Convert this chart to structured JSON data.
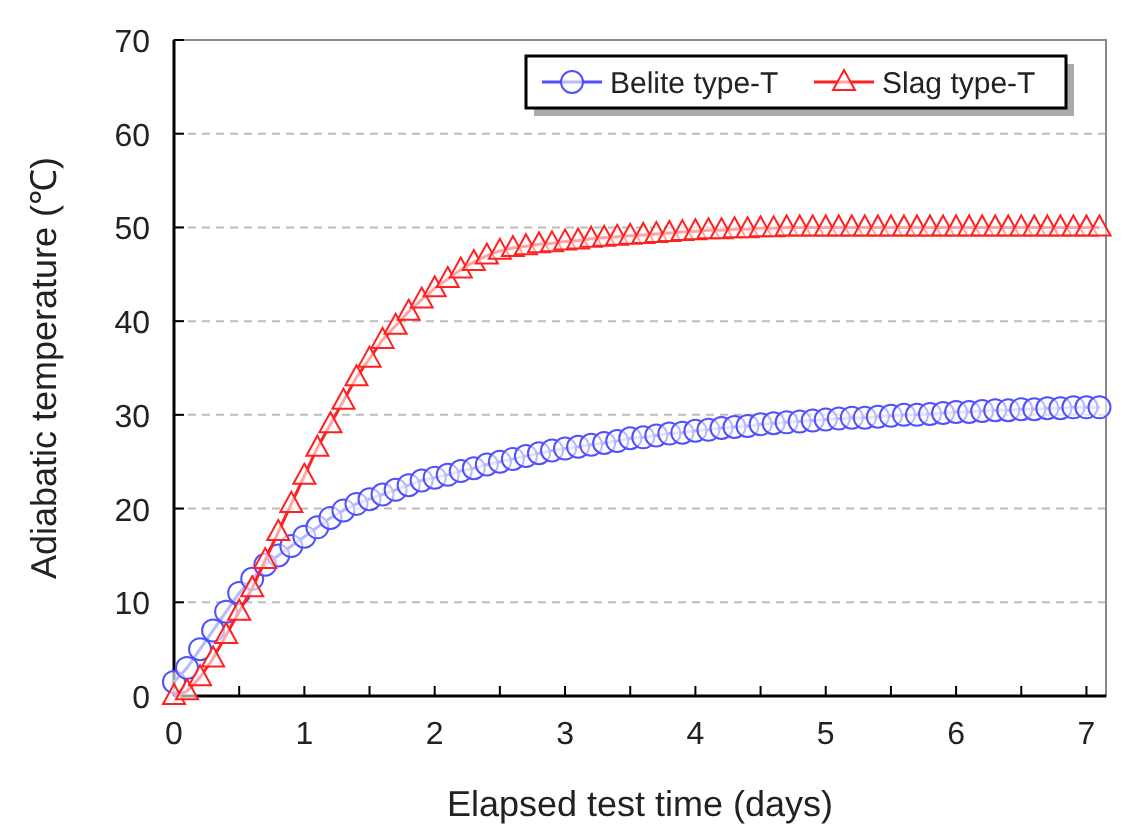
{
  "chart_data": {
    "type": "line",
    "xlabel": "Elapsed test time (days)",
    "ylabel": "Adiabatic temperature (℃)",
    "x": [
      0,
      0.1,
      0.2,
      0.3,
      0.4,
      0.5,
      0.6,
      0.7,
      0.8,
      0.9,
      1,
      1.1,
      1.2,
      1.3,
      1.4,
      1.5,
      1.6,
      1.7,
      1.8,
      1.9,
      2,
      2.1,
      2.2,
      2.3,
      2.4,
      2.5,
      2.6,
      2.7,
      2.8,
      2.9,
      3,
      3.1,
      3.2,
      3.3,
      3.4,
      3.5,
      3.6,
      3.7,
      3.8,
      3.9,
      4,
      4.1,
      4.2,
      4.3,
      4.4,
      4.5,
      4.6,
      4.7,
      4.8,
      4.9,
      5,
      5.1,
      5.2,
      5.3,
      5.4,
      5.5,
      5.6,
      5.7,
      5.8,
      5.9,
      6,
      6.1,
      6.2,
      6.3,
      6.4,
      6.5,
      6.6,
      6.7,
      6.8,
      6.9,
      7,
      7.1
    ],
    "series": [
      {
        "name": "Belite type-T",
        "color": "#5050ff",
        "marker": "circle",
        "values": [
          1.5,
          3,
          5,
          7,
          9,
          11,
          12.5,
          14,
          15,
          16,
          17,
          18,
          19,
          19.8,
          20.5,
          21,
          21.5,
          22,
          22.5,
          23,
          23.3,
          23.6,
          24,
          24.3,
          24.7,
          25,
          25.3,
          25.6,
          25.9,
          26.2,
          26.4,
          26.6,
          26.8,
          27,
          27.2,
          27.5,
          27.6,
          27.8,
          28,
          28.1,
          28.3,
          28.4,
          28.6,
          28.7,
          28.8,
          29,
          29.1,
          29.2,
          29.3,
          29.4,
          29.5,
          29.6,
          29.7,
          29.7,
          29.8,
          29.9,
          30,
          30,
          30.1,
          30.2,
          30.3,
          30.3,
          30.4,
          30.5,
          30.5,
          30.6,
          30.6,
          30.7,
          30.7,
          30.8,
          30.8,
          30.8
        ]
      },
      {
        "name": "Slag type-T",
        "color": "#ff2020",
        "marker": "triangle",
        "values": [
          0,
          0.5,
          2,
          4,
          6.5,
          9,
          11.5,
          14.5,
          17.5,
          20.5,
          23.5,
          26.5,
          29,
          31.5,
          34,
          36,
          38,
          39.5,
          41,
          42.3,
          43.5,
          44.5,
          45.5,
          46.3,
          47,
          47.5,
          47.8,
          48,
          48.2,
          48.3,
          48.5,
          48.6,
          48.8,
          48.9,
          49,
          49.1,
          49.2,
          49.3,
          49.4,
          49.5,
          49.6,
          49.7,
          49.7,
          49.8,
          49.8,
          49.9,
          49.9,
          50,
          50,
          50,
          50,
          50,
          50,
          50,
          50,
          50,
          50,
          50,
          50,
          50,
          50,
          50,
          50,
          50,
          50,
          50,
          50,
          50,
          50,
          50,
          50,
          50
        ]
      }
    ],
    "xlim": [
      0,
      7.15
    ],
    "xticks": [
      0,
      {
        "value": 0.5,
        "label": null
      },
      1,
      {
        "value": 1.5,
        "label": null
      },
      2,
      {
        "value": 2.5,
        "label": null
      },
      3,
      {
        "value": 3.5,
        "label": null
      },
      4,
      {
        "value": 4.5,
        "label": null
      },
      5,
      {
        "value": 5.5,
        "label": null
      },
      6,
      {
        "value": 6.5,
        "label": null
      },
      7
    ],
    "ylim": [
      0,
      70
    ],
    "yticks": [
      0,
      10,
      20,
      30,
      40,
      50,
      60,
      70
    ],
    "grid": "y",
    "legend": "top right"
  }
}
